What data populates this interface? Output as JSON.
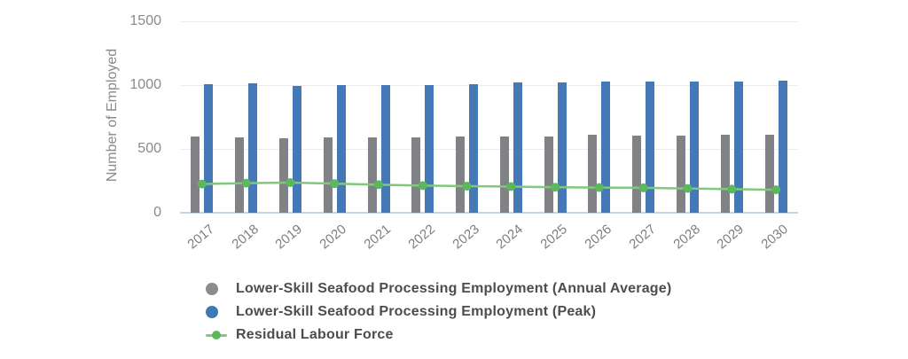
{
  "chart_data": {
    "type": "bar",
    "title": "",
    "xlabel": "",
    "ylabel": "Number of Employed",
    "ylim": [
      0,
      1500
    ],
    "yticks": [
      0,
      500,
      1000,
      1500
    ],
    "grid": true,
    "legend_position": "bottom-left",
    "categories": [
      "2017",
      "2018",
      "2019",
      "2020",
      "2021",
      "2022",
      "2023",
      "2024",
      "2025",
      "2026",
      "2027",
      "2028",
      "2029",
      "2030"
    ],
    "series": [
      {
        "name": "Lower-Skill Seafood Processing Employment (Annual Average)",
        "type": "bar",
        "color": "#808285",
        "legend_color": "#8a8c8e",
        "values": [
          600,
          590,
          580,
          590,
          590,
          590,
          595,
          600,
          600,
          610,
          605,
          605,
          610,
          610
        ]
      },
      {
        "name": "Lower-Skill Seafood Processing Employment (Peak)",
        "type": "bar",
        "color": "#4478b6",
        "legend_color": "#3f78b5",
        "values": [
          1010,
          1015,
          990,
          1000,
          1000,
          1000,
          1010,
          1020,
          1020,
          1025,
          1025,
          1025,
          1025,
          1035
        ]
      },
      {
        "name": "Residual Labour Force",
        "type": "line",
        "color": "#7fc87c",
        "marker_color": "#5cb85c",
        "values": [
          225,
          232,
          236,
          228,
          220,
          213,
          208,
          205,
          200,
          197,
          195,
          190,
          185,
          180
        ]
      }
    ]
  }
}
